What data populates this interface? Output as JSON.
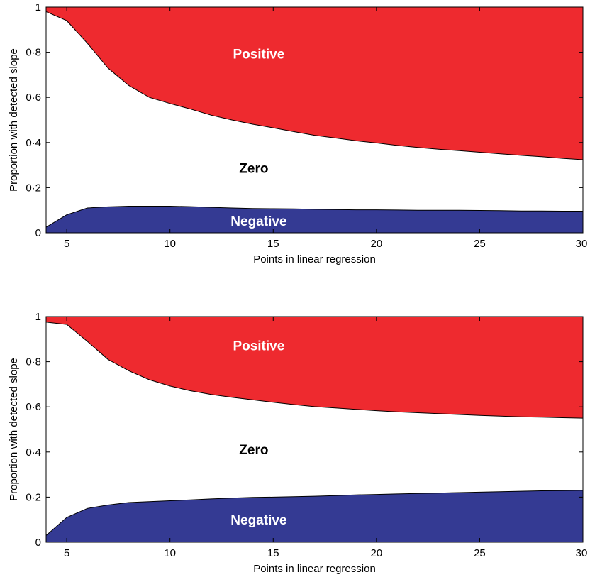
{
  "colors": {
    "positive": "#ee2a2f",
    "negative": "#343a93",
    "zero": "#ffffff",
    "boundary": "#000000"
  },
  "chart_data": [
    {
      "type": "area",
      "xlabel": "Points in linear regression",
      "ylabel": "Proportion with detected slope",
      "xlim": [
        4,
        30
      ],
      "ylim": [
        0,
        1
      ],
      "xticks": [
        5,
        10,
        15,
        20,
        25,
        30
      ],
      "yticks": [
        "0",
        "0·2",
        "0·4",
        "0·6",
        "0·8",
        "1"
      ],
      "ytick_values": [
        0,
        0.2,
        0.4,
        0.6,
        0.8,
        1
      ],
      "region_labels": {
        "positive": "Positive",
        "zero": "Zero",
        "negative": "Negative"
      },
      "x": [
        4,
        5,
        6,
        7,
        8,
        9,
        10,
        11,
        12,
        13,
        14,
        15,
        16,
        17,
        18,
        19,
        20,
        21,
        22,
        23,
        24,
        25,
        26,
        27,
        28,
        29,
        30
      ],
      "series": [
        {
          "name": "Negative",
          "values": [
            0.025,
            0.08,
            0.11,
            0.115,
            0.118,
            0.118,
            0.118,
            0.116,
            0.113,
            0.11,
            0.108,
            0.107,
            0.106,
            0.104,
            0.103,
            0.102,
            0.102,
            0.101,
            0.1,
            0.1,
            0.1,
            0.099,
            0.098,
            0.097,
            0.097,
            0.096,
            0.096
          ]
        },
        {
          "name": "Zero",
          "values": [
            0.955,
            0.86,
            0.73,
            0.615,
            0.535,
            0.482,
            0.455,
            0.432,
            0.408,
            0.39,
            0.373,
            0.358,
            0.342,
            0.328,
            0.317,
            0.306,
            0.296,
            0.286,
            0.278,
            0.27,
            0.264,
            0.258,
            0.252,
            0.246,
            0.24,
            0.234,
            0.228
          ]
        },
        {
          "name": "Positive",
          "values": [
            0.02,
            0.06,
            0.16,
            0.27,
            0.347,
            0.4,
            0.427,
            0.452,
            0.479,
            0.5,
            0.519,
            0.535,
            0.552,
            0.568,
            0.58,
            0.592,
            0.602,
            0.613,
            0.622,
            0.63,
            0.636,
            0.643,
            0.65,
            0.657,
            0.663,
            0.67,
            0.676
          ]
        }
      ]
    },
    {
      "type": "area",
      "xlabel": "Points in linear regression",
      "ylabel": "Proportion with detected slope",
      "xlim": [
        4,
        30
      ],
      "ylim": [
        0,
        1
      ],
      "xticks": [
        5,
        10,
        15,
        20,
        25,
        30
      ],
      "yticks": [
        "0",
        "0·2",
        "0·4",
        "0·6",
        "0·8",
        "1"
      ],
      "ytick_values": [
        0,
        0.2,
        0.4,
        0.6,
        0.8,
        1
      ],
      "region_labels": {
        "positive": "Positive",
        "zero": "Zero",
        "negative": "Negative"
      },
      "x": [
        4,
        5,
        6,
        7,
        8,
        9,
        10,
        11,
        12,
        13,
        14,
        15,
        16,
        17,
        18,
        19,
        20,
        21,
        22,
        23,
        24,
        25,
        26,
        27,
        28,
        29,
        30
      ],
      "series": [
        {
          "name": "Negative",
          "values": [
            0.03,
            0.11,
            0.15,
            0.165,
            0.176,
            0.18,
            0.184,
            0.188,
            0.192,
            0.196,
            0.199,
            0.2,
            0.202,
            0.204,
            0.207,
            0.21,
            0.212,
            0.214,
            0.216,
            0.218,
            0.22,
            0.222,
            0.224,
            0.226,
            0.228,
            0.229,
            0.23
          ]
        },
        {
          "name": "Zero",
          "values": [
            0.945,
            0.855,
            0.74,
            0.645,
            0.584,
            0.54,
            0.508,
            0.483,
            0.463,
            0.446,
            0.432,
            0.42,
            0.408,
            0.397,
            0.388,
            0.379,
            0.371,
            0.364,
            0.358,
            0.352,
            0.346,
            0.34,
            0.335,
            0.33,
            0.326,
            0.323,
            0.32
          ]
        },
        {
          "name": "Positive",
          "values": [
            0.025,
            0.035,
            0.11,
            0.19,
            0.24,
            0.28,
            0.308,
            0.329,
            0.345,
            0.358,
            0.369,
            0.38,
            0.39,
            0.399,
            0.405,
            0.411,
            0.417,
            0.422,
            0.426,
            0.43,
            0.434,
            0.438,
            0.441,
            0.444,
            0.446,
            0.448,
            0.45
          ]
        }
      ]
    }
  ]
}
